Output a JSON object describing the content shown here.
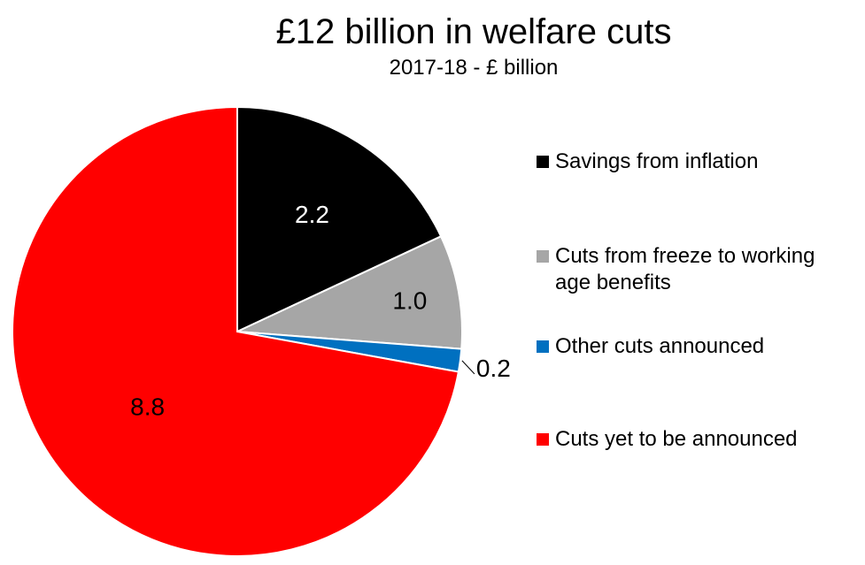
{
  "chart_data": {
    "type": "pie",
    "title": "£12 billion in welfare cuts",
    "subtitle": "2017-18 - £ billion",
    "slices": [
      {
        "name": "Savings from inflation",
        "value": 2.2,
        "label": "2.2",
        "color": "#000000",
        "label_color": "#ffffff"
      },
      {
        "name": "Cuts from freeze to working age benefits",
        "value": 1.0,
        "label": "1.0",
        "color": "#a6a6a6",
        "label_color": "#000000"
      },
      {
        "name": "Other cuts announced",
        "value": 0.2,
        "label": "0.2",
        "color": "#0070c0",
        "label_color": "#000000"
      },
      {
        "name": "Cuts yet to be announced",
        "value": 8.8,
        "label": "8.8",
        "color": "#ff0000",
        "label_color": "#000000"
      }
    ],
    "start_angle": "12 o'clock, clockwise",
    "legend_position": "right"
  }
}
